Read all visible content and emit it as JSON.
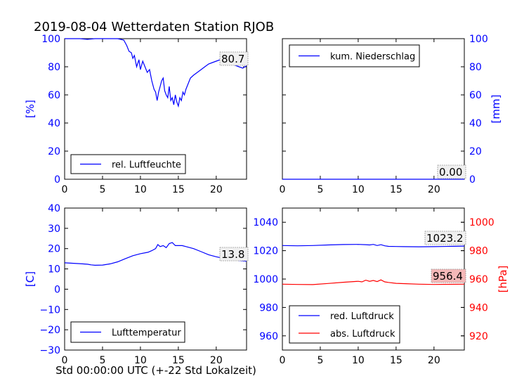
{
  "figure": {
    "title": "2019-08-04 Wetterdaten Station RJOB",
    "xlabel": "Std 00:00:00 UTC (+-22 Std Lokalzeit)"
  },
  "colors": {
    "blue": "#0000ff",
    "red": "#ff0000",
    "black": "#000000",
    "badge_red": "#f4b8b8"
  },
  "chart_data": [
    {
      "id": "humidity",
      "type": "line",
      "xlim": [
        0,
        24
      ],
      "ylim": [
        0,
        100
      ],
      "xticks": [
        "0",
        "5",
        "10",
        "15",
        "20"
      ],
      "yticks": [
        "0",
        "20",
        "40",
        "60",
        "80",
        "100"
      ],
      "ylabel": "[%]",
      "axis_color": "blue",
      "series": [
        {
          "name": "rel. Luftfeuchte",
          "color": "#0000ff",
          "x": [
            0,
            1,
            2,
            3,
            4,
            5,
            6,
            7,
            7.8,
            8.2,
            8.5,
            8.8,
            9.0,
            9.2,
            9.5,
            9.8,
            10.0,
            10.3,
            10.6,
            10.9,
            11.2,
            11.5,
            11.8,
            12.0,
            12.2,
            12.4,
            12.6,
            12.8,
            13.0,
            13.2,
            13.4,
            13.6,
            13.8,
            14.0,
            14.2,
            14.4,
            14.6,
            14.8,
            15.0,
            15.2,
            15.4,
            15.6,
            15.8,
            16.0,
            16.3,
            16.6,
            17.0,
            17.5,
            18.0,
            18.5,
            19.0,
            19.5,
            20.0,
            20.5,
            21.0,
            21.5,
            22.0,
            22.5,
            23.0,
            23.5,
            24.0
          ],
          "y": [
            100,
            100,
            100,
            99.5,
            100,
            100,
            100,
            100,
            99,
            95,
            91,
            90,
            86,
            88,
            80,
            85,
            78,
            84,
            80,
            76,
            78,
            70,
            64,
            62,
            56,
            62,
            66,
            70,
            72,
            63,
            60,
            58,
            66,
            56,
            58,
            53,
            60,
            55,
            52,
            58,
            56,
            62,
            60,
            64,
            68,
            72,
            74,
            76,
            78,
            80,
            82,
            83,
            84,
            85,
            84,
            82,
            83,
            81,
            80,
            79,
            80.7
          ]
        }
      ],
      "last_value": "80.7",
      "legend_position": "lower-left"
    },
    {
      "id": "precipitation",
      "type": "line",
      "xlim": [
        0,
        24
      ],
      "ylim": [
        0,
        100
      ],
      "xticks": [
        "0",
        "5",
        "10",
        "15",
        "20"
      ],
      "yticks": [
        "0",
        "20",
        "40",
        "60",
        "80",
        "100"
      ],
      "ylabel": "[mm]",
      "axis_color": "blue",
      "series": [
        {
          "name": "kum. Niederschlag",
          "color": "#0000ff",
          "x": [
            0,
            24
          ],
          "y": [
            0,
            0
          ]
        }
      ],
      "last_value": "0.00",
      "legend_position": "upper-left"
    },
    {
      "id": "temperature",
      "type": "line",
      "xlim": [
        0,
        24
      ],
      "ylim": [
        -30,
        40
      ],
      "xticks": [
        "0",
        "5",
        "10",
        "15",
        "20"
      ],
      "yticks": [
        "−30",
        "−20",
        "−10",
        "0",
        "10",
        "20",
        "30",
        "40"
      ],
      "ylabel": "[C]",
      "axis_color": "blue",
      "series": [
        {
          "name": "Lufttemperatur",
          "color": "#0000ff",
          "x": [
            0,
            1,
            2,
            3,
            3.5,
            4,
            5,
            6,
            7,
            8,
            9,
            10,
            11,
            11.5,
            12,
            12.3,
            12.6,
            13,
            13.4,
            13.8,
            14.2,
            14.6,
            15,
            15.5,
            16,
            17,
            18,
            19,
            20,
            21,
            22,
            23,
            24
          ],
          "y": [
            13,
            12.8,
            12.6,
            12.3,
            12,
            11.8,
            11.9,
            12.5,
            13.5,
            15,
            16.5,
            17.5,
            18.2,
            19,
            20,
            22,
            21,
            21.5,
            20.5,
            22.5,
            23,
            21.5,
            21.5,
            21.5,
            21,
            20,
            18.5,
            17,
            16,
            15.2,
            14.6,
            14.1,
            13.8
          ]
        }
      ],
      "last_value": "13.8",
      "legend_position": "lower-left"
    },
    {
      "id": "pressure",
      "type": "line",
      "xlim": [
        0,
        24
      ],
      "ylim": [
        950,
        1050
      ],
      "ylim_right": [
        910,
        1010
      ],
      "xticks": [
        "0",
        "5",
        "10",
        "15",
        "20"
      ],
      "yticks": [
        "960",
        "980",
        "1000",
        "1020",
        "1040"
      ],
      "yticks_right": [
        "920",
        "940",
        "960",
        "980",
        "1000"
      ],
      "ylabel_right": "[hPa]",
      "axis_color": "blue",
      "axis_color_right": "red",
      "series": [
        {
          "name": "red. Luftdruck",
          "color": "#0000ff",
          "axis": "left",
          "x": [
            0,
            2,
            4,
            6,
            8,
            10,
            11,
            11.5,
            12,
            12.5,
            13,
            13.5,
            14,
            15,
            16,
            18,
            20,
            22,
            24
          ],
          "y": [
            1023.6,
            1023.4,
            1023.6,
            1024.0,
            1024.3,
            1024.4,
            1024.2,
            1024.0,
            1024.4,
            1023.6,
            1024.2,
            1023.4,
            1023.0,
            1022.9,
            1022.8,
            1022.7,
            1022.8,
            1023.0,
            1023.2
          ]
        },
        {
          "name": "abs. Luftdruck",
          "color": "#ff0000",
          "axis": "right",
          "x": [
            0,
            2,
            4,
            6,
            8,
            10,
            10.5,
            11,
            11.5,
            12,
            12.5,
            13,
            13.5,
            14,
            15,
            16,
            18,
            20,
            22,
            24
          ],
          "y": [
            956.4,
            956.2,
            956.1,
            956.9,
            957.7,
            958.4,
            958.0,
            959.2,
            958.4,
            959.0,
            958.2,
            959.4,
            958.0,
            957.6,
            957.0,
            956.8,
            956.4,
            956.2,
            956.3,
            956.4
          ]
        }
      ],
      "last_value": "1023.2",
      "last_value_right": "956.4",
      "legend_position": "lower-left"
    }
  ]
}
